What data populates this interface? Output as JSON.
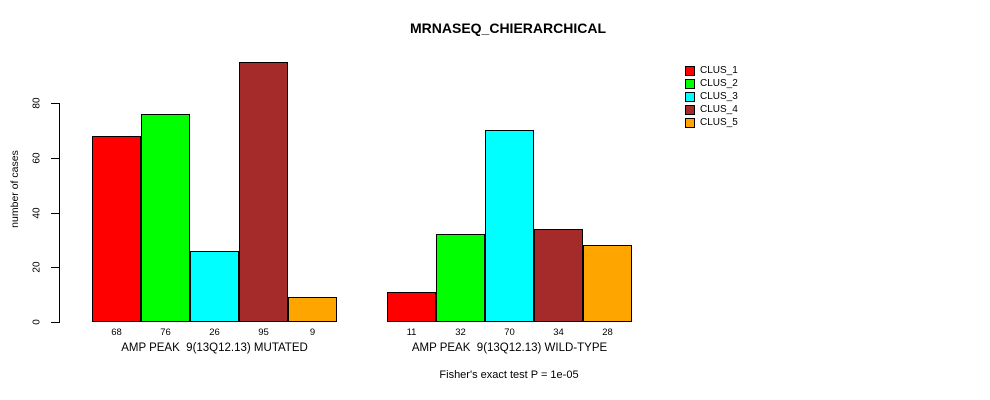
{
  "chart_data": {
    "type": "bar",
    "title": "MRNASEQ_CHIERARCHICAL",
    "ylabel": "number of cases",
    "xlabel": "",
    "ylim": [
      0,
      95
    ],
    "yticks": [
      0,
      20,
      40,
      60,
      80
    ],
    "grid": false,
    "legend_position": "right-outside",
    "value_labels_shown": true,
    "annotation": "Fisher's exact test P = 1e-05",
    "categories": [
      "AMP PEAK  9(13Q12.13) MUTATED",
      "AMP PEAK  9(13Q12.13) WILD-TYPE"
    ],
    "series": [
      {
        "name": "CLUS_1",
        "color": "#FF0000",
        "values": [
          68,
          11
        ]
      },
      {
        "name": "CLUS_2",
        "color": "#00FF00",
        "values": [
          76,
          32
        ]
      },
      {
        "name": "CLUS_3",
        "color": "#00FFFF",
        "values": [
          26,
          70
        ]
      },
      {
        "name": "CLUS_4",
        "color": "#A52A2A",
        "values": [
          95,
          34
        ]
      },
      {
        "name": "CLUS_5",
        "color": "#FFA500",
        "values": [
          9,
          28
        ]
      }
    ],
    "colors": {
      "bar_border": "#000000",
      "axis": "#000000",
      "text": "#000000",
      "background": "#FFFFFF"
    }
  }
}
